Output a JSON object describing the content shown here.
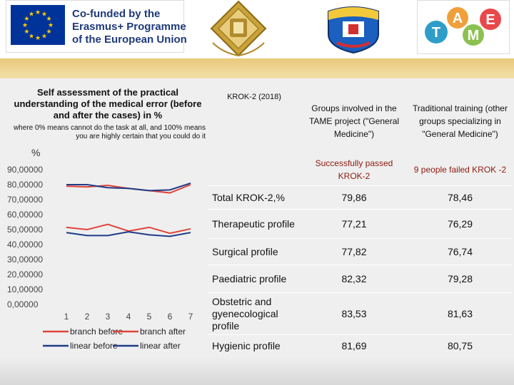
{
  "header": {
    "eu_logo": {
      "lines": [
        "Co-funded by the",
        "Erasmus+ Programme",
        "of the European Union"
      ],
      "flag_color": "#003399",
      "star_color": "#ffcc00"
    },
    "logos": [
      "university-crest-icon",
      "academy-emblem-icon",
      "tame-logo"
    ],
    "tame_letters": [
      "T",
      "A",
      "M",
      "E"
    ],
    "tame_colors": [
      "#2f9dc9",
      "#f0a03a",
      "#8cc152",
      "#e8484a"
    ]
  },
  "left": {
    "heading": "Self assessment of the practical understanding of the medical error (before and after the cases) in %",
    "note": "where 0% means cannot do the task at all, and 100% means you are highly certain that you could do it"
  },
  "chart_data": {
    "type": "line",
    "ylabel": "%",
    "ylim": [
      0,
      90
    ],
    "y_ticks": [
      "90,00000",
      "80,00000",
      "70,00000",
      "60,00000",
      "50,00000",
      "40,00000",
      "30,00000",
      "20,00000",
      "10,00000",
      "0,00000"
    ],
    "x": [
      1,
      2,
      3,
      4,
      5,
      6,
      7
    ],
    "series": [
      {
        "name": "branch before",
        "color": "#e0443a",
        "values": [
          79.0,
          78.5,
          79.5,
          77.5,
          76.0,
          74.5,
          80.0
        ]
      },
      {
        "name": "branch after",
        "color": "#e0443a",
        "values": [
          51.5,
          50.0,
          53.5,
          49.0,
          51.5,
          47.5,
          50.5
        ]
      },
      {
        "name": "linear before",
        "color": "#1f3c88",
        "values": [
          80.0,
          80.0,
          78.0,
          77.5,
          76.0,
          76.5,
          81.0
        ]
      },
      {
        "name": "linear after",
        "color": "#1f3c88",
        "values": [
          48.0,
          46.0,
          46.0,
          48.5,
          46.5,
          45.5,
          48.0
        ]
      }
    ],
    "legend": [
      "branch before",
      "branch after",
      "linear before",
      "linear after"
    ],
    "legend_position": "bottom",
    "grid": false
  },
  "table": {
    "krok_header": "KROK-2 (2018)",
    "tame_header": "Groups involved in the TAME project (\"General Medicine\")",
    "trad_header": "Traditional training (other groups specializing in \"General Medicine\")",
    "tame_sub": "Successfully passed KROK-2",
    "trad_sub": "9 people failed KROK -2",
    "rows": [
      {
        "label": "Total KROK-2,%",
        "tame": "79,86",
        "trad": "78,46"
      },
      {
        "label": "Therapeutic profile",
        "tame": "77,21",
        "trad": "76,29"
      },
      {
        "label": "Surgical profile",
        "tame": "77,82",
        "trad": "76,74"
      },
      {
        "label": "Paediatric profile",
        "tame": "82,32",
        "trad": "79,28"
      },
      {
        "label": "Obstetric and gyenecological profile",
        "tame": "83,53",
        "trad": "81,63"
      },
      {
        "label": "Hygienic profile",
        "tame": "81,69",
        "trad": "80,75"
      }
    ]
  }
}
